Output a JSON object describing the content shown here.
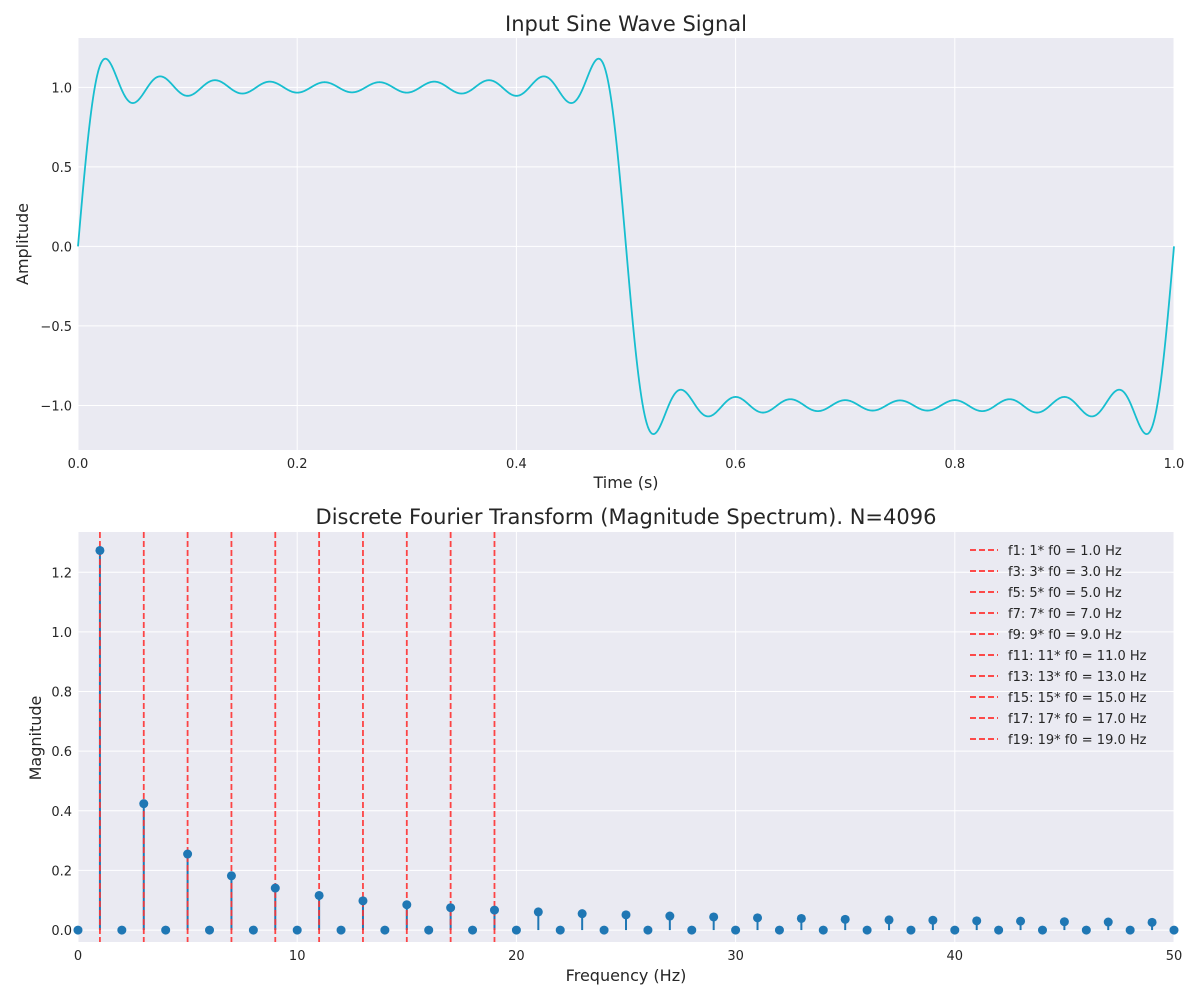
{
  "chart_data": [
    {
      "type": "line",
      "title": "Input Sine Wave Signal",
      "xlabel": "Time (s)",
      "ylabel": "Amplitude",
      "xlim": [
        0,
        1
      ],
      "ylim": [
        -1.28,
        1.31
      ],
      "xticks": [
        0,
        0.2,
        0.4,
        0.6,
        0.8,
        1.0
      ],
      "xtick_labels": [
        "0.0",
        "0.2",
        "0.4",
        "0.6",
        "0.8",
        "1.0"
      ],
      "yticks": [
        -1.0,
        -0.5,
        0.0,
        0.5,
        1.0
      ],
      "ytick_labels": [
        "−1.0",
        "−0.5",
        "0.0",
        "0.5",
        "1.0"
      ],
      "series": [
        {
          "name": "signal",
          "color": "#17becf",
          "description": "Sum of odd sine harmonics 1..19 of f0 = 1 Hz (square-wave approximation)",
          "f0": 1,
          "harmonics": [
            1,
            3,
            5,
            7,
            9,
            11,
            13,
            15,
            17,
            19
          ]
        }
      ],
      "grid": true
    },
    {
      "type": "stem",
      "title": "Discrete Fourier Transform (Magnitude Spectrum). N=4096",
      "xlabel": "Frequency (Hz)",
      "ylabel": "Magnitude",
      "xlim": [
        0,
        50
      ],
      "ylim": [
        -0.04,
        1.335
      ],
      "xticks": [
        0,
        10,
        20,
        30,
        40,
        50
      ],
      "xtick_labels": [
        "0",
        "10",
        "20",
        "30",
        "40",
        "50"
      ],
      "yticks": [
        0,
        0.2,
        0.4,
        0.6,
        0.8,
        1.0,
        1.2
      ],
      "ytick_labels": [
        "0.0",
        "0.2",
        "0.4",
        "0.6",
        "0.8",
        "1.0",
        "1.2"
      ],
      "x": [
        0,
        1,
        2,
        3,
        4,
        5,
        6,
        7,
        8,
        9,
        10,
        11,
        12,
        13,
        14,
        15,
        16,
        17,
        18,
        19,
        20,
        21,
        22,
        23,
        24,
        25,
        26,
        27,
        28,
        29,
        30,
        31,
        32,
        33,
        34,
        35,
        36,
        37,
        38,
        39,
        40,
        41,
        42,
        43,
        44,
        45,
        46,
        47,
        48,
        49,
        50
      ],
      "values": [
        0,
        1.273,
        0,
        0.424,
        0,
        0.255,
        0,
        0.182,
        0,
        0.141,
        0,
        0.116,
        0,
        0.098,
        0,
        0.085,
        0,
        0.075,
        0,
        0.067,
        0,
        0.061,
        0,
        0.055,
        0,
        0.051,
        0,
        0.047,
        0,
        0.044,
        0,
        0.041,
        0,
        0.039,
        0,
        0.036,
        0,
        0.034,
        0,
        0.033,
        0,
        0.031,
        0,
        0.03,
        0,
        0.028,
        0,
        0.027,
        0,
        0.026,
        0
      ],
      "stem_color": "#1f77b4",
      "vlines": [
        1,
        3,
        5,
        7,
        9,
        11,
        13,
        15,
        17,
        19
      ],
      "vline_color": "#ff3333",
      "legend": {
        "position": "top-right",
        "entries": [
          "f1: 1* f0 = 1.0 Hz",
          "f3: 3* f0 = 3.0 Hz",
          "f5: 5* f0 = 5.0 Hz",
          "f7: 7* f0 = 7.0 Hz",
          "f9: 9* f0 = 9.0 Hz",
          "f11: 11* f0 = 11.0 Hz",
          "f13: 13* f0 = 13.0 Hz",
          "f15: 15* f0 = 15.0 Hz",
          "f17: 17* f0 = 17.0 Hz",
          "f19: 19* f0 = 19.0 Hz"
        ]
      },
      "grid": true
    }
  ],
  "colors": {
    "axes_background": "#eaeaf2",
    "grid": "#ffffff",
    "text": "#262626"
  }
}
